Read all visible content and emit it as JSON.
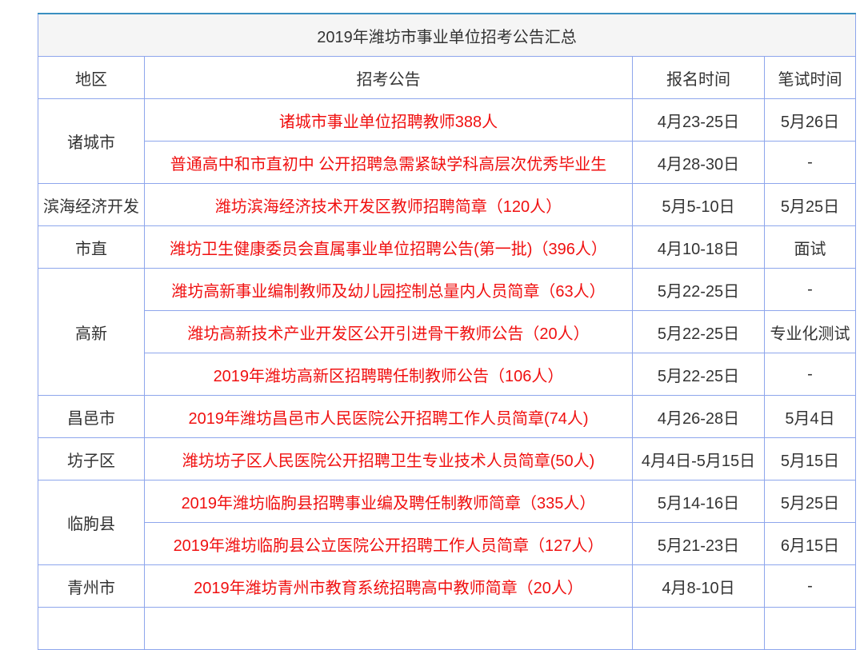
{
  "title": "2019年潍坊市事业单位招考公告汇总",
  "headers": [
    "地区",
    "招考公告",
    "报名时间",
    "笔试时间"
  ],
  "colors": {
    "link": "#f01010",
    "border": "#8ea6ec",
    "title_bg": "#f5f5f5"
  },
  "groups": [
    {
      "region": "诸城市",
      "rows": [
        {
          "notice": "诸城市事业单位招聘教师388人",
          "signup": "4月23-25日",
          "exam": "5月26日"
        },
        {
          "notice": "普通高中和市直初中 公开招聘急需紧缺学科高层次优秀毕业生",
          "signup": "4月28-30日",
          "exam": "-"
        }
      ]
    },
    {
      "region": "滨海经济开发",
      "rows": [
        {
          "notice": "潍坊滨海经济技术开发区教师招聘简章（120人）",
          "signup": "5月5-10日",
          "exam": "5月25日"
        }
      ]
    },
    {
      "region": "市直",
      "rows": [
        {
          "notice": "潍坊卫生健康委员会直属事业单位招聘公告(第一批)（396人）",
          "signup": "4月10-18日",
          "exam": "面试"
        }
      ]
    },
    {
      "region": "高新",
      "rows": [
        {
          "notice": "潍坊高新事业编制教师及幼儿园控制总量内人员简章（63人）",
          "signup": "5月22-25日",
          "exam": "-"
        },
        {
          "notice": "潍坊高新技术产业开发区公开引进骨干教师公告（20人）",
          "signup": "5月22-25日",
          "exam": "专业化测试"
        },
        {
          "notice": "2019年潍坊高新区招聘聘任制教师公告（106人）",
          "signup": "5月22-25日",
          "exam": "-"
        }
      ]
    },
    {
      "region": "昌邑市",
      "rows": [
        {
          "notice": "2019年潍坊昌邑市人民医院公开招聘工作人员简章(74人)",
          "signup": "4月26-28日",
          "exam": "5月4日"
        }
      ]
    },
    {
      "region": "坊子区",
      "rows": [
        {
          "notice": "潍坊坊子区人民医院公开招聘卫生专业技术人员简章(50人)",
          "signup": "4月4日-5月15日",
          "exam": "5月15日"
        }
      ]
    },
    {
      "region": "临朐县",
      "rows": [
        {
          "notice": "2019年潍坊临朐县招聘事业编及聘任制教师简章（335人）",
          "signup": "5月14-16日",
          "exam": "5月25日"
        },
        {
          "notice": "2019年潍坊临朐县公立医院公开招聘工作人员简章（127人）",
          "signup": "5月21-23日",
          "exam": "6月15日"
        }
      ]
    },
    {
      "region": "青州市",
      "rows": [
        {
          "notice": "2019年潍坊青州市教育系统招聘高中教师简章（20人）",
          "signup": "4月8-10日",
          "exam": "-"
        }
      ]
    }
  ]
}
